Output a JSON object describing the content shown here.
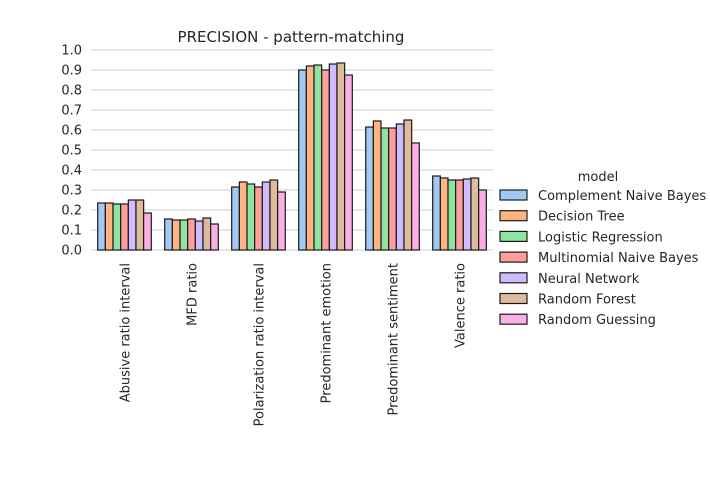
{
  "chart_data": {
    "type": "bar",
    "title": "PRECISION - pattern-matching",
    "xlabel": "",
    "ylabel": "",
    "ylim": [
      0,
      1.0
    ],
    "yticks": [
      "0.0",
      "0.1",
      "0.2",
      "0.3",
      "0.4",
      "0.5",
      "0.6",
      "0.7",
      "0.8",
      "0.9",
      "1.0"
    ],
    "grid": true,
    "legend_title": "model",
    "legend_position": "right",
    "categories": [
      "Abusive ratio interval",
      "MFD ratio",
      "Polarization ratio interval",
      "Predominant emotion",
      "Predominant sentiment",
      "Valence ratio"
    ],
    "series": [
      {
        "name": "Complement Naive Bayes",
        "color": "#a1c9f4",
        "values": [
          0.235,
          0.155,
          0.315,
          0.9,
          0.615,
          0.37
        ]
      },
      {
        "name": "Decision Tree",
        "color": "#ffb482",
        "values": [
          0.235,
          0.15,
          0.34,
          0.92,
          0.645,
          0.36
        ]
      },
      {
        "name": "Logistic Regression",
        "color": "#8de5a1",
        "values": [
          0.23,
          0.15,
          0.33,
          0.925,
          0.61,
          0.35
        ]
      },
      {
        "name": "Multinomial Naive Bayes",
        "color": "#ff9f9b",
        "values": [
          0.23,
          0.155,
          0.315,
          0.9,
          0.61,
          0.35
        ]
      },
      {
        "name": "Neural Network",
        "color": "#d0bbff",
        "values": [
          0.25,
          0.145,
          0.34,
          0.93,
          0.63,
          0.355
        ]
      },
      {
        "name": "Random Forest",
        "color": "#debb9b",
        "values": [
          0.25,
          0.16,
          0.35,
          0.935,
          0.65,
          0.36
        ]
      },
      {
        "name": "Random Guessing",
        "color": "#fab0e4",
        "values": [
          0.185,
          0.13,
          0.29,
          0.875,
          0.535,
          0.3
        ]
      }
    ]
  }
}
